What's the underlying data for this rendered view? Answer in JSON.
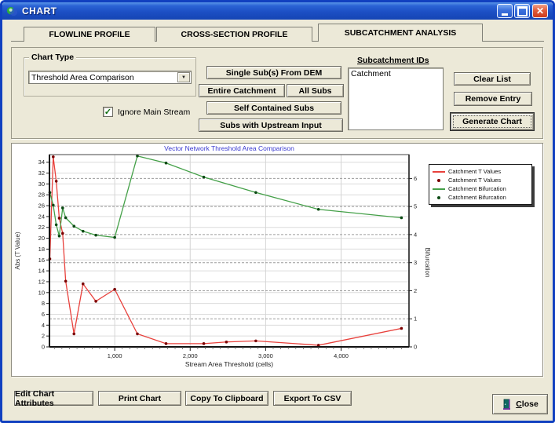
{
  "window": {
    "title": "CHART"
  },
  "tabs": [
    {
      "label": "FLOWLINE PROFILE",
      "active": false
    },
    {
      "label": "CROSS-SECTION PROFILE",
      "active": false
    },
    {
      "label": "SUBCATCHMENT ANALYSIS",
      "active": true
    }
  ],
  "controls": {
    "chart_type_label": "Chart Type",
    "chart_type_value": "Threshold Area Comparison",
    "ignore_main_stream_label": "Ignore Main Stream",
    "ignore_main_stream_checked": true,
    "single_subs_label": "Single Sub(s) From DEM",
    "entire_catchment_label": "Entire Catchment",
    "all_subs_label": "All Subs",
    "self_contained_label": "Self Contained Subs",
    "upstream_label": "Subs with Upstream Input",
    "subcatchment_ids_label": "Subcatchment IDs",
    "subcatchment_items": [
      "Catchment"
    ],
    "clear_list_label": "Clear List",
    "remove_entry_label": "Remove Entry",
    "generate_chart_label": "Generate Chart"
  },
  "footer": {
    "edit_attributes_label": "Edit Chart Attributes",
    "print_label": "Print Chart",
    "copy_label": "Copy To Clipboard",
    "export_label": "Export To CSV",
    "close_initial": "C",
    "close_rest": "lose"
  },
  "icons": {
    "check_glyph": "✓",
    "dropdown_glyph": "▼",
    "close_glyph": "✕"
  },
  "colors": {
    "dialog_bg": "#ece9d8",
    "chart_title": "#3a3ad0",
    "red_line": "#e8413c",
    "red_marker": "#7a0000",
    "green_line": "#44a048",
    "green_marker": "#0c4a14"
  },
  "chart_data": {
    "type": "line",
    "title": "Vector Network Threshold Area Comparison",
    "xlabel": "Stream Area Threshold (cells)",
    "ylabel_left": "Abs (T Value)",
    "ylabel_right": "Bifurcation",
    "xlim": [
      135,
      4900
    ],
    "ylim_left": [
      0,
      35.4
    ],
    "ylim_right": [
      0,
      6.85
    ],
    "x_major_ticks": [
      1000,
      2000,
      3000,
      4000
    ],
    "x_minor_step": 100,
    "left_tick_step": 2,
    "left_tick_max": 34,
    "right_ticks": [
      0,
      1,
      2,
      3,
      4,
      5,
      6
    ],
    "grid": {
      "h_solid_step": 2,
      "h_dashed_right_units": [
        1,
        2,
        3,
        4,
        5,
        6
      ],
      "v_at": [
        1000,
        2000,
        3000,
        4000
      ]
    },
    "legend_position": "right-top",
    "series": [
      {
        "name": "Catchment T Values",
        "axis": "left",
        "line_color": "#e8413c",
        "marker_color": "#7a0000",
        "x": [
          140,
          185,
          225,
          265,
          310,
          350,
          460,
          580,
          750,
          1000,
          1300,
          1680,
          2180,
          2480,
          2870,
          3700,
          4800
        ],
        "y": [
          16.2,
          35.0,
          30.5,
          23.7,
          20.9,
          12.1,
          2.4,
          11.6,
          8.4,
          10.6,
          2.4,
          0.6,
          0.6,
          0.9,
          1.1,
          0.3,
          3.4
        ]
      },
      {
        "name": "Catchment Bifurcation",
        "axis": "right",
        "line_color": "#44a048",
        "marker_color": "#0c4a14",
        "x": [
          140,
          185,
          225,
          265,
          310,
          350,
          460,
          580,
          750,
          1000,
          1300,
          1680,
          2180,
          2870,
          3700,
          4800
        ],
        "y": [
          5.5,
          5.05,
          4.35,
          3.95,
          4.95,
          4.6,
          4.3,
          4.12,
          3.98,
          3.9,
          6.8,
          6.55,
          6.05,
          5.5,
          4.9,
          4.6
        ]
      }
    ],
    "legend": [
      {
        "swatch": "line",
        "color": "#e8413c",
        "label": "Catchment T Values"
      },
      {
        "swatch": "dot",
        "color": "#7a0000",
        "label": "Catchment T Values"
      },
      {
        "swatch": "line",
        "color": "#44a048",
        "label": "Catchment Bifurcation"
      },
      {
        "swatch": "dot",
        "color": "#0c4a14",
        "label": "Catchment Bifurcation"
      }
    ]
  }
}
